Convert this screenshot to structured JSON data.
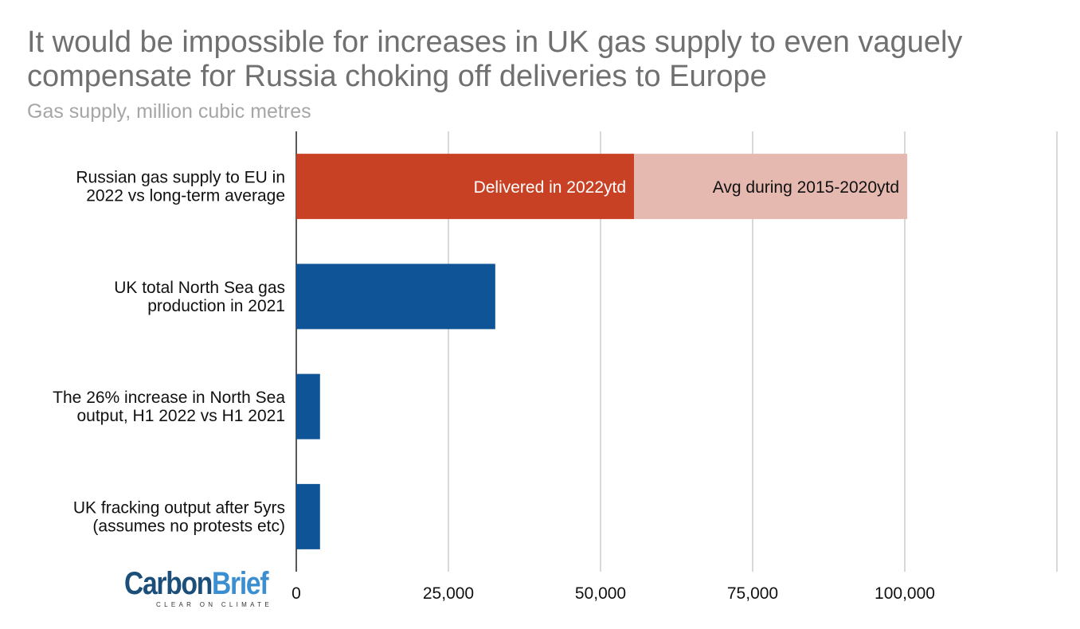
{
  "title": "It would be impossible for increases in UK gas supply to even vaguely compensate for Russia choking off deliveries to Europe",
  "subtitle": "Gas supply, million cubic metres",
  "logo": {
    "carbon": "Carbon",
    "brief": "Brief",
    "tagline": "CLEAR ON CLIMATE"
  },
  "chart_data": {
    "type": "bar",
    "orientation": "horizontal",
    "stacked": true,
    "categories": [
      [
        "Russian gas supply to EU in",
        "2022 vs long-term average"
      ],
      [
        "UK total North Sea gas",
        "production in 2021"
      ],
      [
        "The 26% increase in North Sea",
        "output, H1 2022 vs H1 2021"
      ],
      [
        "UK fracking output after 5yrs",
        "(assumes no protests etc)"
      ]
    ],
    "series": [
      {
        "name": "Delivered in 2022ytd",
        "color": "#c94125",
        "values": [
          55500,
          null,
          null,
          null
        ]
      },
      {
        "name": "Avg during 2015-2020ytd",
        "color": "#e5b9b0",
        "values": [
          44900,
          null,
          null,
          null
        ]
      },
      {
        "color": "#0e5496",
        "values": [
          null,
          32700,
          3900,
          3900
        ]
      }
    ],
    "xlim": [
      0,
      125000
    ],
    "xticks": [
      0,
      25000,
      50000,
      75000,
      100000
    ],
    "xtick_labels": [
      "0",
      "25,000",
      "50,000",
      "75,000",
      "100,000"
    ],
    "grid": true,
    "legend": "none"
  }
}
